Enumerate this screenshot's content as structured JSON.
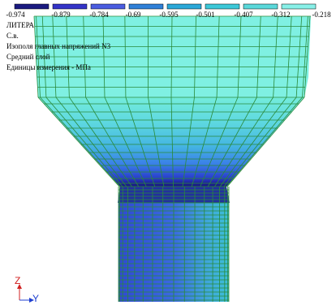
{
  "legend": {
    "labels": [
      "-0.974",
      "-0.879",
      "-0.784",
      "-0.69",
      "-0.595",
      "-0.501",
      "-0.407",
      "-0.312",
      "-0.218"
    ]
  },
  "info": {
    "lines": [
      "ЛИТЕРА",
      "С.в.",
      "Изополя главных напряжений N3",
      "Средний слой",
      "Единицы измерения - МПа"
    ]
  },
  "axes": {
    "z": "Z",
    "y": "Y"
  }
}
